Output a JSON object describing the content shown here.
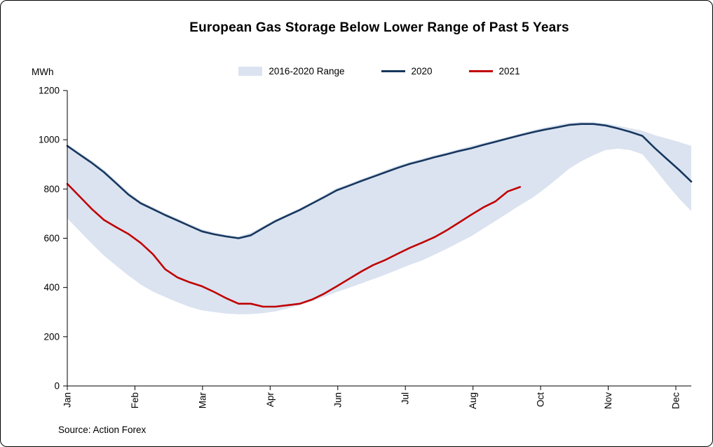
{
  "chart_data": {
    "type": "line",
    "title": "European Gas Storage Below Lower Range of Past 5 Years",
    "unit_label": "MWh",
    "source": "Source: Action Forex",
    "legend_position": "top",
    "grid": false,
    "y_axis": {
      "min": 0,
      "max": 1200,
      "ticks": [
        0,
        200,
        400,
        600,
        800,
        1000,
        1200
      ]
    },
    "x_tick_labels": [
      "Jan",
      "Feb",
      "Mar",
      "Apr",
      "Jun",
      "Jul",
      "Aug",
      "Oct",
      "Nov",
      "Dec"
    ],
    "x_unit": "week-of-year index 0-51",
    "band": {
      "name": "2016-2020 Range",
      "color": "#dbe3f0",
      "upper": [
        981,
        948,
        915,
        878,
        833,
        787,
        750,
        726,
        702,
        680,
        658,
        637,
        624,
        614,
        607,
        623,
        649,
        676,
        699,
        722,
        747,
        775,
        803,
        821,
        840,
        858,
        877,
        895,
        910,
        923,
        937,
        949,
        962,
        975,
        987,
        1000,
        1012,
        1025,
        1038,
        1050,
        1060,
        1069,
        1072,
        1071,
        1067,
        1057,
        1047,
        1037,
        1019,
        1005,
        991,
        975
      ],
      "lower": [
        681,
        629,
        578,
        529,
        488,
        448,
        412,
        383,
        361,
        340,
        321,
        307,
        300,
        294,
        291,
        292,
        296,
        303,
        315,
        328,
        344,
        362,
        381,
        398,
        416,
        434,
        452,
        472,
        492,
        510,
        533,
        557,
        582,
        608,
        639,
        670,
        702,
        734,
        764,
        800,
        840,
        882,
        912,
        937,
        958,
        964,
        958,
        941,
        883,
        820,
        762,
        710
      ]
    },
    "series": [
      {
        "name": "2020",
        "color": "#17375e",
        "values": [
          975,
          940,
          906,
          868,
          823,
          777,
          742,
          718,
          694,
          672,
          650,
          628,
          616,
          607,
          600,
          612,
          641,
          669,
          692,
          715,
          741,
          767,
          794,
          813,
          832,
          850,
          868,
          886,
          902,
          915,
          929,
          941,
          954,
          965,
          979,
          992,
          1005,
          1018,
          1030,
          1041,
          1050,
          1060,
          1064,
          1064,
          1058,
          1046,
          1032,
          1016,
          967,
          922,
          878,
          830
        ]
      },
      {
        "name": "2021",
        "color": "#c00000",
        "values": [
          821,
          770,
          719,
          674,
          645,
          617,
          581,
          535,
          474,
          441,
          421,
          405,
          382,
          356,
          334,
          334,
          322,
          322,
          328,
          334,
          351,
          375,
          404,
          434,
          464,
          491,
          512,
          537,
          561,
          582,
          604,
          632,
          663,
          695,
          725,
          750,
          790,
          808
        ]
      }
    ]
  }
}
